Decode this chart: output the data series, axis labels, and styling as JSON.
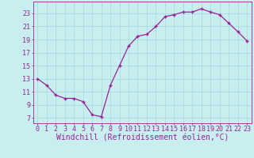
{
  "x": [
    0,
    1,
    2,
    3,
    4,
    5,
    6,
    7,
    8,
    9,
    10,
    11,
    12,
    13,
    14,
    15,
    16,
    17,
    18,
    19,
    20,
    21,
    22,
    23
  ],
  "y": [
    13,
    12,
    10.5,
    10,
    10,
    9.5,
    7.5,
    7.2,
    12,
    15,
    18,
    19.5,
    19.8,
    21,
    22.5,
    22.8,
    23.2,
    23.2,
    23.7,
    23.2,
    22.8,
    21.5,
    20.2,
    18.8
  ],
  "line_color": "#992299",
  "marker": "+",
  "bg_color": "#c8eef0",
  "grid_color": "#aadddd",
  "xlabel": "Windchill (Refroidissement éolien,°C)",
  "yticks": [
    7,
    9,
    11,
    13,
    15,
    17,
    19,
    21,
    23
  ],
  "xlim": [
    -0.5,
    23.5
  ],
  "ylim": [
    6.2,
    24.8
  ],
  "tick_color": "#992299",
  "xlabel_color": "#992299",
  "tick_fontsize": 6,
  "xlabel_fontsize": 7
}
